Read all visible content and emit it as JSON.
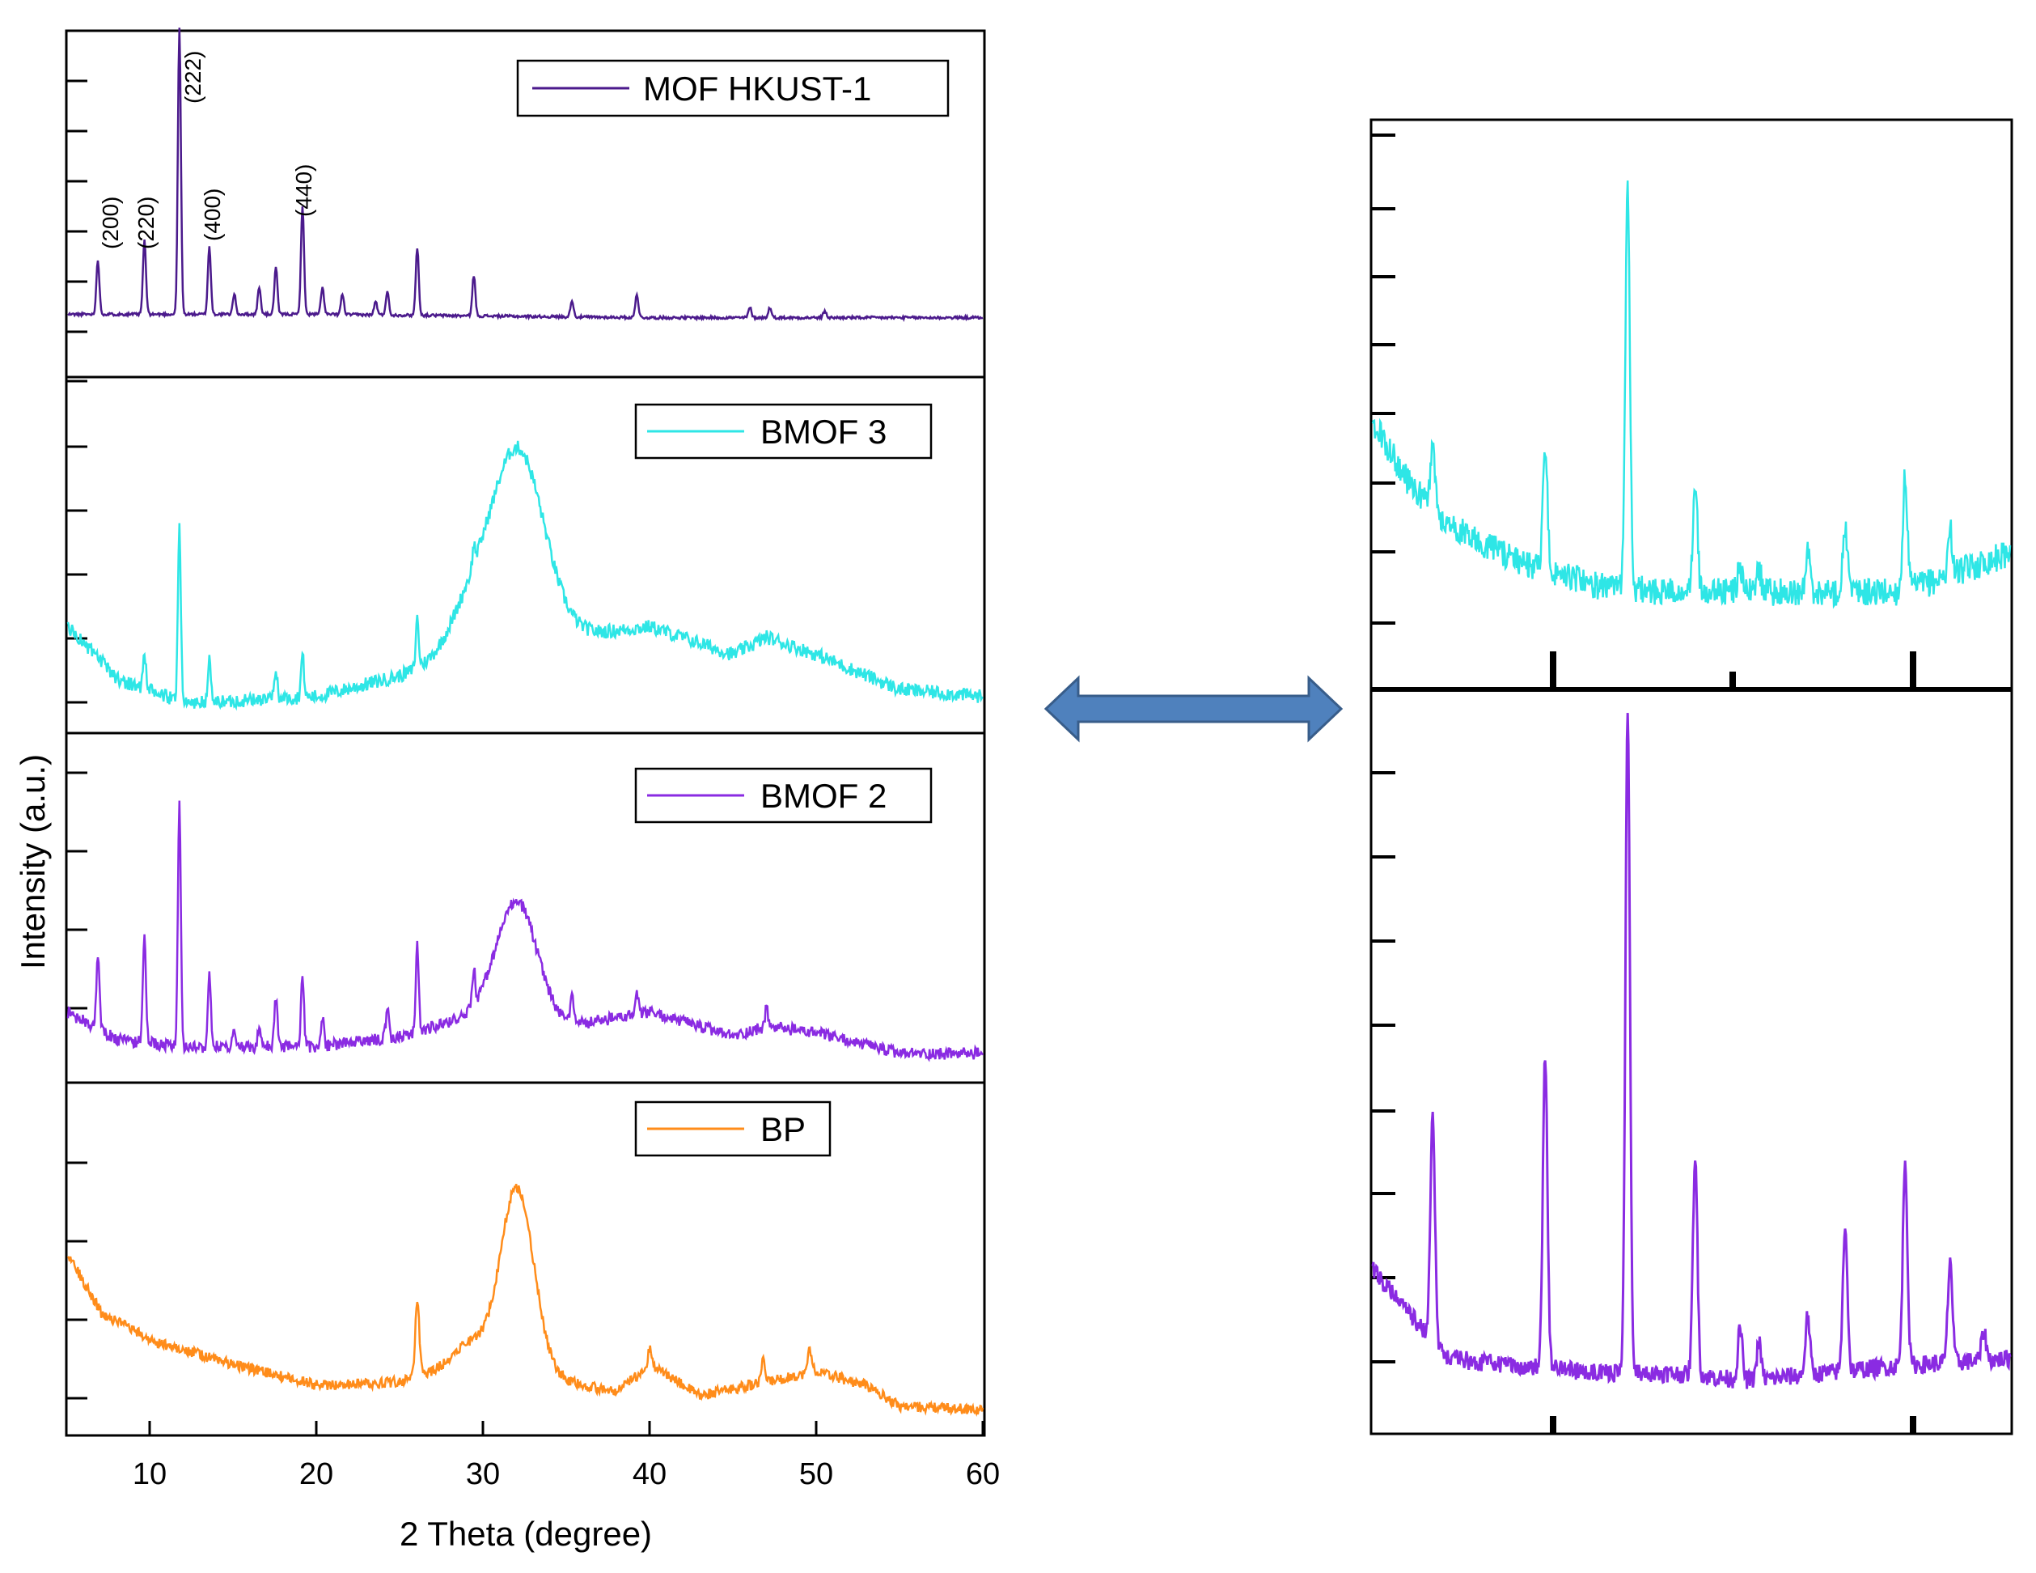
{
  "figure": {
    "xlabel": "2 Theta (degree)",
    "ylabel": "Intensity (a.u.)",
    "x_ticks": [
      "10",
      "20",
      "30",
      "40",
      "50",
      "60"
    ]
  },
  "colors": {
    "mof": "#4b1a8c",
    "bmof3": "#2ee6e6",
    "bmof2": "#8a2be2",
    "bp": "#ff8c1a",
    "arrow_fill": "#4f81bd",
    "arrow_stroke": "#385d8a"
  },
  "panels": {
    "mof": {
      "legend": "MOF HKUST-1",
      "annotations": [
        "(200)",
        "(220)",
        "(222)",
        "(400)",
        "(440)"
      ]
    },
    "bmof3": {
      "legend": "BMOF 3"
    },
    "bmof2": {
      "legend": "BMOF 2"
    },
    "bp": {
      "legend": "BP"
    }
  },
  "chart_data": [
    {
      "type": "line",
      "title": "",
      "xlabel": "2 Theta (degree)",
      "ylabel": "Intensity (a.u.)",
      "xlim": [
        5,
        60
      ],
      "ylim": [
        0,
        1
      ],
      "series": [
        {
          "name": "MOF HKUST-1",
          "baseline": [
            [
              5,
              0.18
            ],
            [
              20,
              0.18
            ],
            [
              40,
              0.17
            ],
            [
              60,
              0.17
            ]
          ],
          "broad": [],
          "peaks": [
            [
              6.8,
              0.16
            ],
            [
              9.6,
              0.22
            ],
            [
              11.7,
              0.84
            ],
            [
              13.5,
              0.2
            ],
            [
              15,
              0.06
            ],
            [
              16.5,
              0.08
            ],
            [
              17.5,
              0.14
            ],
            [
              19.1,
              0.32
            ],
            [
              20.3,
              0.08
            ],
            [
              21.5,
              0.06
            ],
            [
              23.5,
              0.04
            ],
            [
              24.2,
              0.07
            ],
            [
              26.0,
              0.2
            ],
            [
              29.4,
              0.12
            ],
            [
              35.3,
              0.05
            ],
            [
              39.2,
              0.07
            ],
            [
              46.0,
              0.03
            ],
            [
              47.2,
              0.03
            ],
            [
              50.5,
              0.02
            ]
          ]
        },
        {
          "name": "BMOF 3",
          "baseline": [
            [
              5,
              0.3
            ],
            [
              8,
              0.15
            ],
            [
              12,
              0.08
            ],
            [
              20,
              0.1
            ],
            [
              25,
              0.16
            ],
            [
              30,
              0.25
            ],
            [
              35,
              0.27
            ],
            [
              40,
              0.3
            ],
            [
              45,
              0.22
            ],
            [
              47,
              0.27
            ],
            [
              50,
              0.22
            ],
            [
              55,
              0.12
            ],
            [
              60,
              0.1
            ]
          ],
          "broad": [
            [
              32.0,
              0.55,
              1.6
            ],
            [
              29,
              0.1,
              1.2
            ]
          ],
          "peaks": [
            [
              9.6,
              0.1
            ],
            [
              11.7,
              0.5
            ],
            [
              13.5,
              0.12
            ],
            [
              17.5,
              0.08
            ],
            [
              19.1,
              0.12
            ],
            [
              26.0,
              0.14
            ],
            [
              29.4,
              0.05
            ]
          ]
        },
        {
          "name": "BMOF 2",
          "baseline": [
            [
              5,
              0.2
            ],
            [
              8,
              0.12
            ],
            [
              12,
              0.1
            ],
            [
              20,
              0.1
            ],
            [
              25,
              0.13
            ],
            [
              30,
              0.2
            ],
            [
              35,
              0.16
            ],
            [
              40,
              0.2
            ],
            [
              45,
              0.13
            ],
            [
              47,
              0.16
            ],
            [
              50,
              0.14
            ],
            [
              55,
              0.08
            ],
            [
              60,
              0.08
            ]
          ],
          "broad": [
            [
              32.0,
              0.34,
              1.2
            ]
          ],
          "peaks": [
            [
              6.8,
              0.22
            ],
            [
              9.6,
              0.32
            ],
            [
              11.7,
              0.7
            ],
            [
              13.5,
              0.22
            ],
            [
              15,
              0.05
            ],
            [
              16.5,
              0.05
            ],
            [
              17.5,
              0.14
            ],
            [
              19.1,
              0.2
            ],
            [
              20.3,
              0.08
            ],
            [
              24.2,
              0.08
            ],
            [
              26.0,
              0.25
            ],
            [
              29.4,
              0.1
            ],
            [
              35.3,
              0.08
            ],
            [
              39.2,
              0.06
            ],
            [
              47,
              0.05
            ]
          ]
        },
        {
          "name": "BP",
          "baseline": [
            [
              5,
              0.52
            ],
            [
              7,
              0.35
            ],
            [
              10,
              0.27
            ],
            [
              15,
              0.2
            ],
            [
              20,
              0.14
            ],
            [
              25,
              0.15
            ],
            [
              28,
              0.2
            ],
            [
              30,
              0.22
            ],
            [
              35,
              0.15
            ],
            [
              38,
              0.12
            ],
            [
              40,
              0.2
            ],
            [
              43,
              0.11
            ],
            [
              46,
              0.14
            ],
            [
              48,
              0.16
            ],
            [
              50,
              0.18
            ],
            [
              53,
              0.14
            ],
            [
              55,
              0.08
            ],
            [
              60,
              0.07
            ]
          ],
          "broad": [
            [
              32.0,
              0.52,
              1.0
            ],
            [
              29,
              0.05,
              0.8
            ]
          ],
          "peaks": [
            [
              26.0,
              0.22
            ],
            [
              40.0,
              0.05
            ],
            [
              46.8,
              0.06
            ],
            [
              49.6,
              0.07
            ]
          ]
        }
      ]
    },
    {
      "type": "line",
      "title": "",
      "xlabel": "",
      "ylabel": "",
      "xlim": [
        8,
        25
      ],
      "ylim": [
        0,
        1
      ],
      "series": [
        {
          "name": "BMOF 3",
          "baseline": [
            [
              8,
              0.47
            ],
            [
              9,
              0.36
            ],
            [
              10,
              0.29
            ],
            [
              12,
              0.22
            ],
            [
              14,
              0.18
            ],
            [
              16,
              0.17
            ],
            [
              18,
              0.17
            ],
            [
              20,
              0.17
            ],
            [
              22,
              0.17
            ],
            [
              23,
              0.19
            ],
            [
              25,
              0.24
            ]
          ],
          "broad": [],
          "peaks": [
            [
              9.6,
              0.1
            ],
            [
              12.6,
              0.22
            ],
            [
              14.8,
              0.72
            ],
            [
              16.6,
              0.2
            ],
            [
              17.8,
              0.05
            ],
            [
              18.3,
              0.04
            ],
            [
              19.6,
              0.07
            ],
            [
              20.6,
              0.12
            ],
            [
              22.2,
              0.2
            ],
            [
              23.4,
              0.08
            ]
          ]
        },
        {
          "name": "BMOF 2",
          "baseline": [
            [
              8,
              0.22
            ],
            [
              9,
              0.16
            ],
            [
              10,
              0.1
            ],
            [
              12,
              0.09
            ],
            [
              14,
              0.08
            ],
            [
              16,
              0.08
            ],
            [
              18,
              0.07
            ],
            [
              20,
              0.08
            ],
            [
              22,
              0.09
            ],
            [
              25,
              0.1
            ]
          ],
          "broad": [],
          "peaks": [
            [
              9.6,
              0.3
            ],
            [
              12.6,
              0.43
            ],
            [
              14.8,
              0.9
            ],
            [
              16.6,
              0.3
            ],
            [
              17.8,
              0.07
            ],
            [
              18.3,
              0.05
            ],
            [
              19.6,
              0.08
            ],
            [
              20.6,
              0.2
            ],
            [
              22.2,
              0.28
            ],
            [
              23.4,
              0.14
            ],
            [
              24.3,
              0.04
            ]
          ]
        }
      ]
    }
  ]
}
